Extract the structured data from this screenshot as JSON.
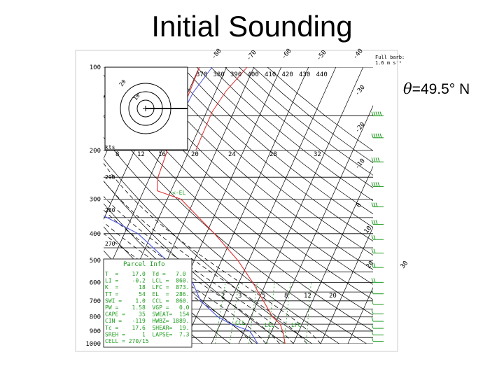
{
  "slide": {
    "title": "Initial Sounding",
    "latitude_symbol": "θ",
    "latitude_text": "=49.5° N"
  },
  "chart_data": {
    "type": "skew-t",
    "pressure_ticks": [
      "100",
      "200",
      "300",
      "400",
      "500",
      "600",
      "700",
      "800",
      "900",
      "1000"
    ],
    "pressure_levels": [
      100,
      200,
      300,
      400,
      500,
      600,
      700,
      800,
      900,
      1000
    ],
    "isotherm_labels": [
      "-80",
      "-70",
      "-60",
      "-50",
      "-40",
      "-30",
      "-20",
      "-10",
      "0",
      "10",
      "20",
      "30"
    ],
    "dry_adiabat_labels": [
      "370",
      "380",
      "390",
      "400",
      "410",
      "420",
      "430",
      "440"
    ],
    "height_labels": [
      "290",
      "280",
      "270"
    ],
    "hodograph": {
      "speed_labels": [
        "kts",
        "8",
        "12",
        "16",
        "20",
        "24",
        "28",
        "32"
      ],
      "rings": [
        "10",
        "20"
      ]
    },
    "mixing_ratio_labels": [
      "2",
      "3",
      "5",
      "8",
      "12",
      "20"
    ],
    "level_markers": [
      "<-EL",
      "CCL",
      "LCL",
      "LFC"
    ],
    "barb_header": [
      "Full barb:",
      "1.6 m s⁻¹"
    ],
    "parcel_info": {
      "title": "Parcel Info",
      "rows": [
        "T  =    17.0  Td =   7.0",
        "LI =    -0.2  LCL =  860.",
        "K  =      18  LFC =  873.",
        "TT =      54  EL  =  286.",
        "SWI =    1.0  CCL =  860.",
        "PW =    1.58  VGP =   0.0",
        "CAPE =    35  SWEAT=  154",
        "CIN =   -119  HWBZ= 1889.",
        "Tc =    17.6  SHEAR=  19.",
        "SREH =     1  LAPSE=  7.3",
        "CELL = 270/15"
      ]
    },
    "series": [
      {
        "name": "Temperature",
        "color": "#e03030",
        "points": [
          [
            100,
            -60
          ],
          [
            150,
            -59
          ],
          [
            200,
            -58
          ],
          [
            250,
            -57
          ],
          [
            280,
            -55
          ],
          [
            300,
            -45
          ],
          [
            400,
            -27
          ],
          [
            500,
            -14
          ],
          [
            600,
            -5
          ],
          [
            700,
            2
          ],
          [
            800,
            8
          ],
          [
            850,
            12
          ],
          [
            900,
            14
          ],
          [
            1000,
            17
          ]
        ]
      },
      {
        "name": "Dewpoint",
        "color": "#4a55e8",
        "points": [
          [
            100,
            -96
          ],
          [
            150,
            -90
          ],
          [
            200,
            -85
          ],
          [
            250,
            -86
          ],
          [
            300,
            -85
          ],
          [
            400,
            -55
          ],
          [
            500,
            -40
          ],
          [
            600,
            -27
          ],
          [
            700,
            -21
          ],
          [
            800,
            -12
          ],
          [
            850,
            -6
          ],
          [
            900,
            2
          ],
          [
            1000,
            7
          ]
        ]
      }
    ],
    "wind_barbs": [
      {
        "p": 150,
        "spd": 50
      },
      {
        "p": 180,
        "spd": 45
      },
      {
        "p": 220,
        "spd": 40
      },
      {
        "p": 270,
        "spd": 35
      },
      {
        "p": 320,
        "spd": 30
      },
      {
        "p": 370,
        "spd": 25
      },
      {
        "p": 420,
        "spd": 20
      },
      {
        "p": 470,
        "spd": 20
      },
      {
        "p": 530,
        "spd": 15
      },
      {
        "p": 600,
        "spd": 15
      },
      {
        "p": 660,
        "spd": 10
      },
      {
        "p": 720,
        "spd": 10
      },
      {
        "p": 780,
        "spd": 10
      },
      {
        "p": 830,
        "spd": 5
      },
      {
        "p": 880,
        "spd": 5
      },
      {
        "p": 930,
        "spd": 5
      },
      {
        "p": 980,
        "spd": 5
      }
    ],
    "colors": {
      "grid": "#000000",
      "temperature": "#e03030",
      "dewpoint": "#4a55e8",
      "annotations": "#1e9a1e",
      "frame": "#cccccc"
    }
  }
}
